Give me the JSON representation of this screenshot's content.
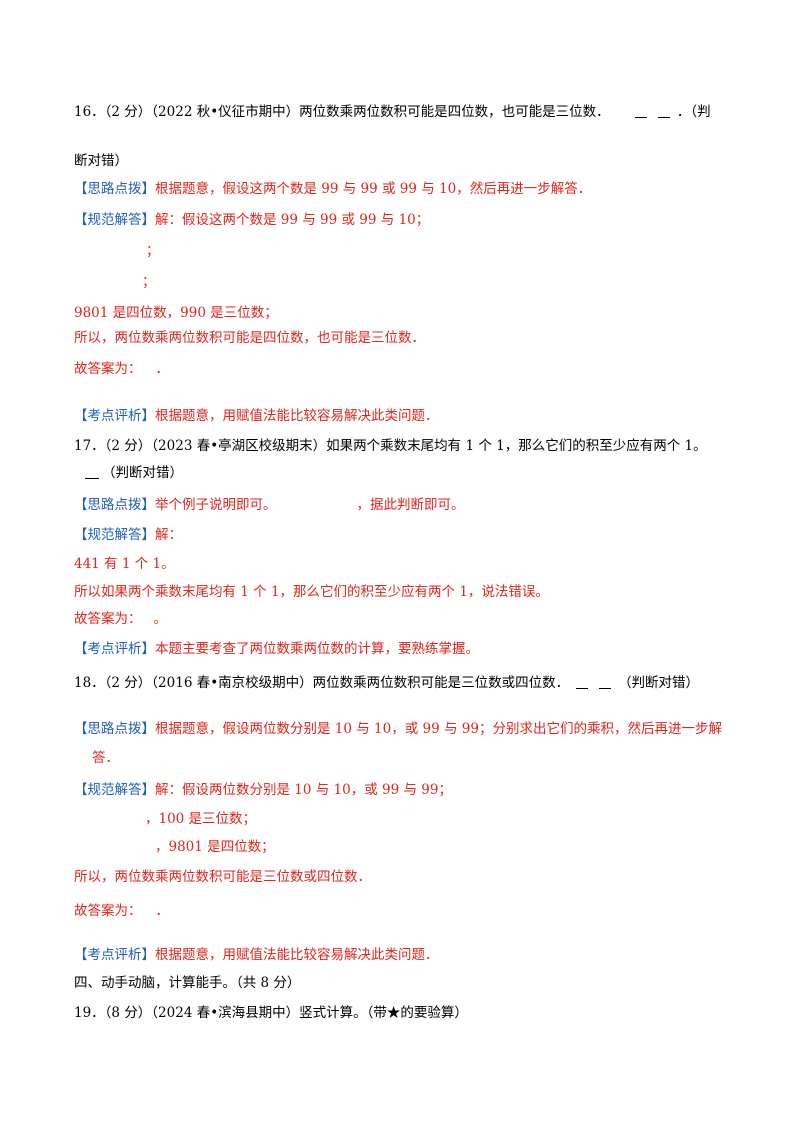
{
  "q16": {
    "stem": "16．（2 分）（2022 秋•仪征市期中）两位数乘两位数积可能是四位数，也可能是三位数．",
    "tail1": "．（判",
    "tail2": "断对错）",
    "hint_tag": "【思路点拨】",
    "hint": "根据题意，假设这两个数是 99 与 99 或 99 与 10，然后再进一步解答．",
    "sol_tag": "【规范解答】",
    "sol": "解：假设这两个数是 99 与 99 或 99 与 10；",
    "semi1": "；",
    "semi2": "；",
    "l1": "9801 是四位数，990 是三位数；",
    "l2": "所以，两位数乘两位数积可能是四位数，也可能是三位数．",
    "ans": "故答案为：",
    "ans_dot": "．",
    "eval_tag": "【考点评析】",
    "eval": "根据题意，用赋值法能比较容易解决此类问题．"
  },
  "q17": {
    "stem": "17．（2 分）（2023 春•亭湖区校级期末）如果两个乘数末尾均有 1 个 1，那么它们的积至少应有两个 1。",
    "tail": "（判断对错）",
    "hint_tag": "【思路点拨】",
    "hint_a": "举个例子说明即可。",
    "hint_b": "，据此判断即可。",
    "sol_tag": "【规范解答】",
    "sol": "解：",
    "l1": "441 有 1 个 1。",
    "l2": "所以如果两个乘数末尾均有 1 个 1，那么它们的积至少应有两个 1，说法错误。",
    "ans": "故答案为：",
    "ans_dot": "。",
    "eval_tag": "【考点评析】",
    "eval": "本题主要考查了两位数乘两位数的计算，要熟练掌握。"
  },
  "q18": {
    "stem": "18．（2 分）（2016 春•南京校级期中）两位数乘两位数积可能是三位数或四位数．",
    "tail": "（判断对错）",
    "hint_tag": "【思路点拨】",
    "hint": "根据题意，假设两位数分别是 10 与 10，或 99 与 99；分别求出它们的乘积，然后再进一步解",
    "hint2": "答．",
    "sol_tag": "【规范解答】",
    "sol": "解：假设两位数分别是 10 与 10，或 99 与 99；",
    "r1": "，100 是三位数；",
    "r2": "，9801 是四位数；",
    "l2": "所以，两位数乘两位数积可能是三位数或四位数．",
    "ans": "故答案为：",
    "ans_dot": "．",
    "eval_tag": "【考点评析】",
    "eval": "根据题意，用赋值法能比较容易解决此类问题．"
  },
  "section4": "四、动手动脑，计算能手。（共 8 分）",
  "q19": "19．（8 分）（2024 春•滨海县期中）竖式计算。（带★的要验算）",
  "colors": {
    "red": "#e1251b",
    "blue": "#1f5fbf"
  }
}
